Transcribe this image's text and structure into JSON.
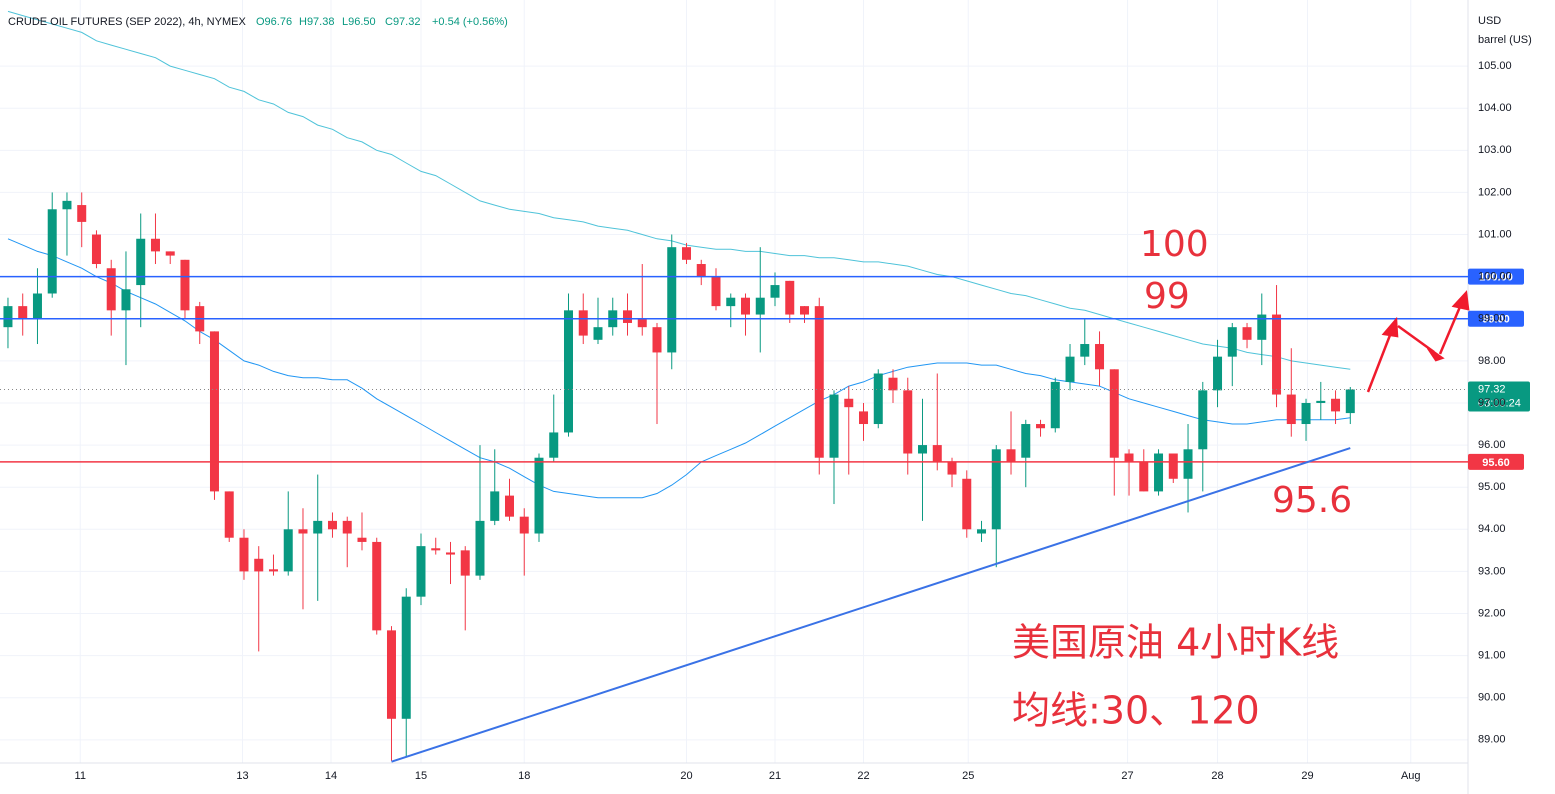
{
  "chart_data": {
    "type": "candlestick",
    "title": "CRUDE OIL FUTURES (SEP 2022), 4h, NYMEX",
    "ohlc_labels": [
      "O96.76",
      "H97.38",
      "L96.50",
      "C97.32"
    ],
    "change_label": "+0.54 (+0.56%)",
    "currency": "USD",
    "unit": "barrel (US)",
    "up_color": "#089981",
    "down_color": "#f23645",
    "open": [
      98.8,
      99.3,
      99.0,
      99.6,
      101.6,
      101.7,
      101.0,
      100.2,
      99.2,
      99.8,
      100.9,
      100.6,
      100.4,
      99.3,
      98.7,
      94.9,
      93.8,
      93.3,
      93.05,
      93.0,
      94.0,
      93.9,
      94.2,
      94.2,
      93.8,
      93.7,
      91.6,
      89.5,
      92.4,
      93.55,
      93.45,
      93.5,
      92.9,
      94.2,
      94.8,
      94.3,
      93.9,
      95.7,
      96.3,
      99.2,
      98.5,
      98.8,
      99.2,
      99.0,
      98.8,
      98.2,
      100.7,
      100.3,
      100.0,
      99.3,
      99.5,
      99.1,
      99.5,
      99.9,
      99.3,
      99.3,
      95.7,
      97.1,
      96.8,
      96.5,
      97.6,
      97.3,
      95.8,
      96.0,
      95.6,
      95.2,
      93.9,
      94.0,
      95.9,
      95.7,
      96.5,
      96.4,
      97.5,
      98.1,
      98.4,
      97.8,
      95.8,
      95.6,
      94.9,
      95.8,
      95.2,
      95.9,
      97.3,
      98.1,
      98.8,
      98.5,
      99.1,
      97.2,
      96.5,
      97.0,
      97.1,
      96.76
    ],
    "high": [
      99.5,
      99.6,
      100.2,
      102.0,
      102.0,
      102.0,
      101.1,
      100.4,
      100.6,
      101.5,
      101.5,
      100.6,
      100.4,
      99.4,
      98.7,
      94.9,
      94.0,
      93.6,
      93.4,
      94.9,
      94.5,
      95.3,
      94.4,
      94.3,
      94.4,
      93.8,
      91.7,
      92.6,
      93.9,
      93.8,
      93.7,
      93.6,
      96.0,
      95.9,
      95.2,
      94.5,
      95.8,
      97.2,
      99.6,
      99.6,
      99.5,
      99.5,
      99.6,
      100.3,
      98.9,
      101.0,
      100.8,
      100.4,
      100.2,
      99.6,
      99.6,
      100.7,
      100.1,
      99.9,
      99.3,
      99.5,
      97.3,
      97.4,
      97.0,
      97.8,
      97.8,
      97.6,
      97.1,
      97.7,
      95.7,
      95.4,
      94.2,
      96.0,
      96.8,
      96.6,
      96.6,
      97.6,
      98.4,
      99.0,
      98.7,
      97.8,
      95.9,
      95.9,
      95.9,
      95.8,
      96.5,
      97.5,
      98.5,
      98.9,
      98.9,
      99.6,
      99.8,
      98.3,
      97.1,
      97.5,
      97.3,
      97.38
    ],
    "low": [
      98.3,
      98.6,
      98.4,
      99.5,
      100.5,
      100.7,
      100.2,
      98.6,
      97.9,
      98.8,
      100.3,
      100.3,
      99.0,
      98.4,
      94.7,
      93.7,
      92.8,
      91.1,
      92.9,
      92.9,
      92.1,
      92.3,
      93.8,
      93.1,
      93.5,
      91.5,
      88.5,
      88.6,
      92.2,
      93.4,
      92.7,
      91.6,
      92.8,
      94.1,
      94.2,
      92.9,
      93.7,
      95.6,
      96.2,
      98.4,
      98.4,
      98.6,
      98.6,
      98.6,
      96.5,
      97.8,
      100.3,
      99.8,
      99.2,
      98.8,
      98.6,
      98.2,
      99.3,
      98.9,
      98.9,
      95.3,
      94.6,
      95.3,
      96.1,
      96.4,
      97.0,
      95.3,
      94.2,
      95.4,
      95.0,
      93.8,
      93.7,
      93.1,
      95.3,
      95.0,
      96.2,
      96.3,
      97.3,
      97.9,
      97.4,
      94.8,
      94.8,
      94.9,
      94.8,
      95.1,
      94.4,
      94.9,
      96.9,
      97.4,
      98.3,
      97.9,
      96.9,
      96.2,
      96.1,
      96.6,
      96.5,
      96.5
    ],
    "close": [
      99.3,
      99.0,
      99.6,
      101.6,
      101.8,
      101.3,
      100.3,
      99.2,
      99.7,
      100.9,
      100.6,
      100.5,
      99.2,
      98.7,
      94.9,
      93.8,
      93.0,
      93.0,
      93.0,
      94.0,
      93.9,
      94.2,
      94.0,
      93.9,
      93.7,
      91.6,
      89.5,
      92.4,
      93.6,
      93.5,
      93.4,
      92.9,
      94.2,
      94.9,
      94.3,
      93.9,
      95.7,
      96.3,
      99.2,
      98.6,
      98.8,
      99.2,
      98.9,
      98.8,
      98.2,
      100.7,
      100.4,
      100.0,
      99.3,
      99.5,
      99.1,
      99.5,
      99.8,
      99.1,
      99.1,
      95.7,
      97.2,
      96.9,
      96.5,
      97.7,
      97.3,
      95.8,
      96.0,
      95.6,
      95.3,
      94.0,
      94.0,
      95.9,
      95.6,
      96.5,
      96.4,
      97.5,
      98.1,
      98.4,
      97.8,
      95.7,
      95.6,
      94.9,
      95.8,
      95.2,
      95.9,
      97.3,
      98.1,
      98.8,
      98.5,
      99.1,
      97.2,
      96.5,
      97.0,
      97.05,
      96.8,
      97.32
    ],
    "series": [
      {
        "name": "MA120",
        "color": "#4fc3d9",
        "values": [
          106.3,
          106.2,
          106.1,
          106.0,
          105.9,
          105.8,
          105.6,
          105.5,
          105.4,
          105.3,
          105.2,
          105.0,
          104.9,
          104.8,
          104.7,
          104.5,
          104.4,
          104.2,
          104.1,
          103.9,
          103.8,
          103.6,
          103.5,
          103.3,
          103.2,
          103.0,
          102.9,
          102.7,
          102.5,
          102.4,
          102.2,
          102.0,
          101.8,
          101.7,
          101.6,
          101.55,
          101.5,
          101.4,
          101.35,
          101.3,
          101.2,
          101.15,
          101.1,
          101.0,
          100.9,
          100.85,
          100.75,
          100.7,
          100.65,
          100.65,
          100.6,
          100.6,
          100.55,
          100.5,
          100.5,
          100.45,
          100.45,
          100.4,
          100.35,
          100.35,
          100.3,
          100.25,
          100.15,
          100.05,
          100.0,
          99.9,
          99.8,
          99.7,
          99.6,
          99.55,
          99.45,
          99.35,
          99.25,
          99.2,
          99.1,
          99.0,
          98.9,
          98.8,
          98.7,
          98.6,
          98.5,
          98.4,
          98.35,
          98.3,
          98.2,
          98.15,
          98.1,
          98.0,
          97.95,
          97.9,
          97.85,
          97.8
        ]
      },
      {
        "name": "MA30",
        "color": "#2196f3",
        "values": [
          100.9,
          100.75,
          100.6,
          100.5,
          100.35,
          100.2,
          100.0,
          99.85,
          99.65,
          99.5,
          99.35,
          99.15,
          98.95,
          98.7,
          98.5,
          98.25,
          98.0,
          97.9,
          97.75,
          97.65,
          97.6,
          97.6,
          97.55,
          97.55,
          97.35,
          97.1,
          96.9,
          96.7,
          96.5,
          96.3,
          96.1,
          95.9,
          95.7,
          95.6,
          95.45,
          95.25,
          95.05,
          94.9,
          94.85,
          94.8,
          94.75,
          94.75,
          94.75,
          94.75,
          94.85,
          95.05,
          95.3,
          95.6,
          95.75,
          95.9,
          96.05,
          96.25,
          96.45,
          96.65,
          96.85,
          97.05,
          97.2,
          97.4,
          97.5,
          97.65,
          97.75,
          97.85,
          97.9,
          97.95,
          97.95,
          97.95,
          97.9,
          97.9,
          97.8,
          97.7,
          97.65,
          97.55,
          97.5,
          97.45,
          97.4,
          97.25,
          97.1,
          97.0,
          96.9,
          96.8,
          96.7,
          96.6,
          96.55,
          96.5,
          96.5,
          96.55,
          96.6,
          96.6,
          96.6,
          96.6,
          96.6,
          96.65
        ]
      }
    ],
    "levels": [
      {
        "value": 100,
        "label": "100.00",
        "color": "#2962ff"
      },
      {
        "value": 99,
        "label": "99.00",
        "color": "#2962ff"
      },
      {
        "value": 95.6,
        "label": "95.60",
        "color": "#f23645"
      }
    ],
    "last_price": {
      "value": 97.32,
      "label": "97.32",
      "countdown": "03:00:24"
    },
    "trendline": {
      "x": [
        26,
        91
      ],
      "y": [
        88.48,
        95.93
      ],
      "color": "#3a72e6"
    },
    "annotations": [
      "100",
      "99",
      "95.6",
      "美国原油 4小时K线",
      "均线:30、120"
    ],
    "xlim": [
      -0.54,
      98.98
    ],
    "ylim": [
      88.45,
      106.57
    ],
    "xticks": [
      {
        "value": 4.9,
        "label": "11"
      },
      {
        "value": 15.9,
        "label": "13"
      },
      {
        "value": 21.9,
        "label": "14"
      },
      {
        "value": 28.0,
        "label": "15"
      },
      {
        "value": 35.0,
        "label": "18"
      },
      {
        "value": 46.0,
        "label": "20"
      },
      {
        "value": 52.0,
        "label": "21"
      },
      {
        "value": 58.0,
        "label": "22"
      },
      {
        "value": 65.1,
        "label": "25"
      },
      {
        "value": 75.9,
        "label": "27"
      },
      {
        "value": 82.0,
        "label": "28"
      },
      {
        "value": 88.1,
        "label": "29"
      },
      {
        "value": 95.1,
        "label": "Aug"
      }
    ],
    "yticks": [
      {
        "value": 89,
        "label": "89.00"
      },
      {
        "value": 90,
        "label": "90.00"
      },
      {
        "value": 91,
        "label": "91.00"
      },
      {
        "value": 92,
        "label": "92.00"
      },
      {
        "value": 93,
        "label": "93.00"
      },
      {
        "value": 94,
        "label": "94.00"
      },
      {
        "value": 95,
        "label": "95.00"
      },
      {
        "value": 96,
        "label": "96.00"
      },
      {
        "value": 97,
        "label": "97.00"
      },
      {
        "value": 98,
        "label": "98.00"
      },
      {
        "value": 99,
        "label": "99.00"
      },
      {
        "value": 100,
        "label": "100.00"
      },
      {
        "value": 101,
        "label": "101.00"
      },
      {
        "value": 102,
        "label": "102.00"
      },
      {
        "value": 103,
        "label": "103.00"
      },
      {
        "value": 104,
        "label": "104.00"
      },
      {
        "value": 105,
        "label": "105.00"
      }
    ],
    "grid": true
  }
}
